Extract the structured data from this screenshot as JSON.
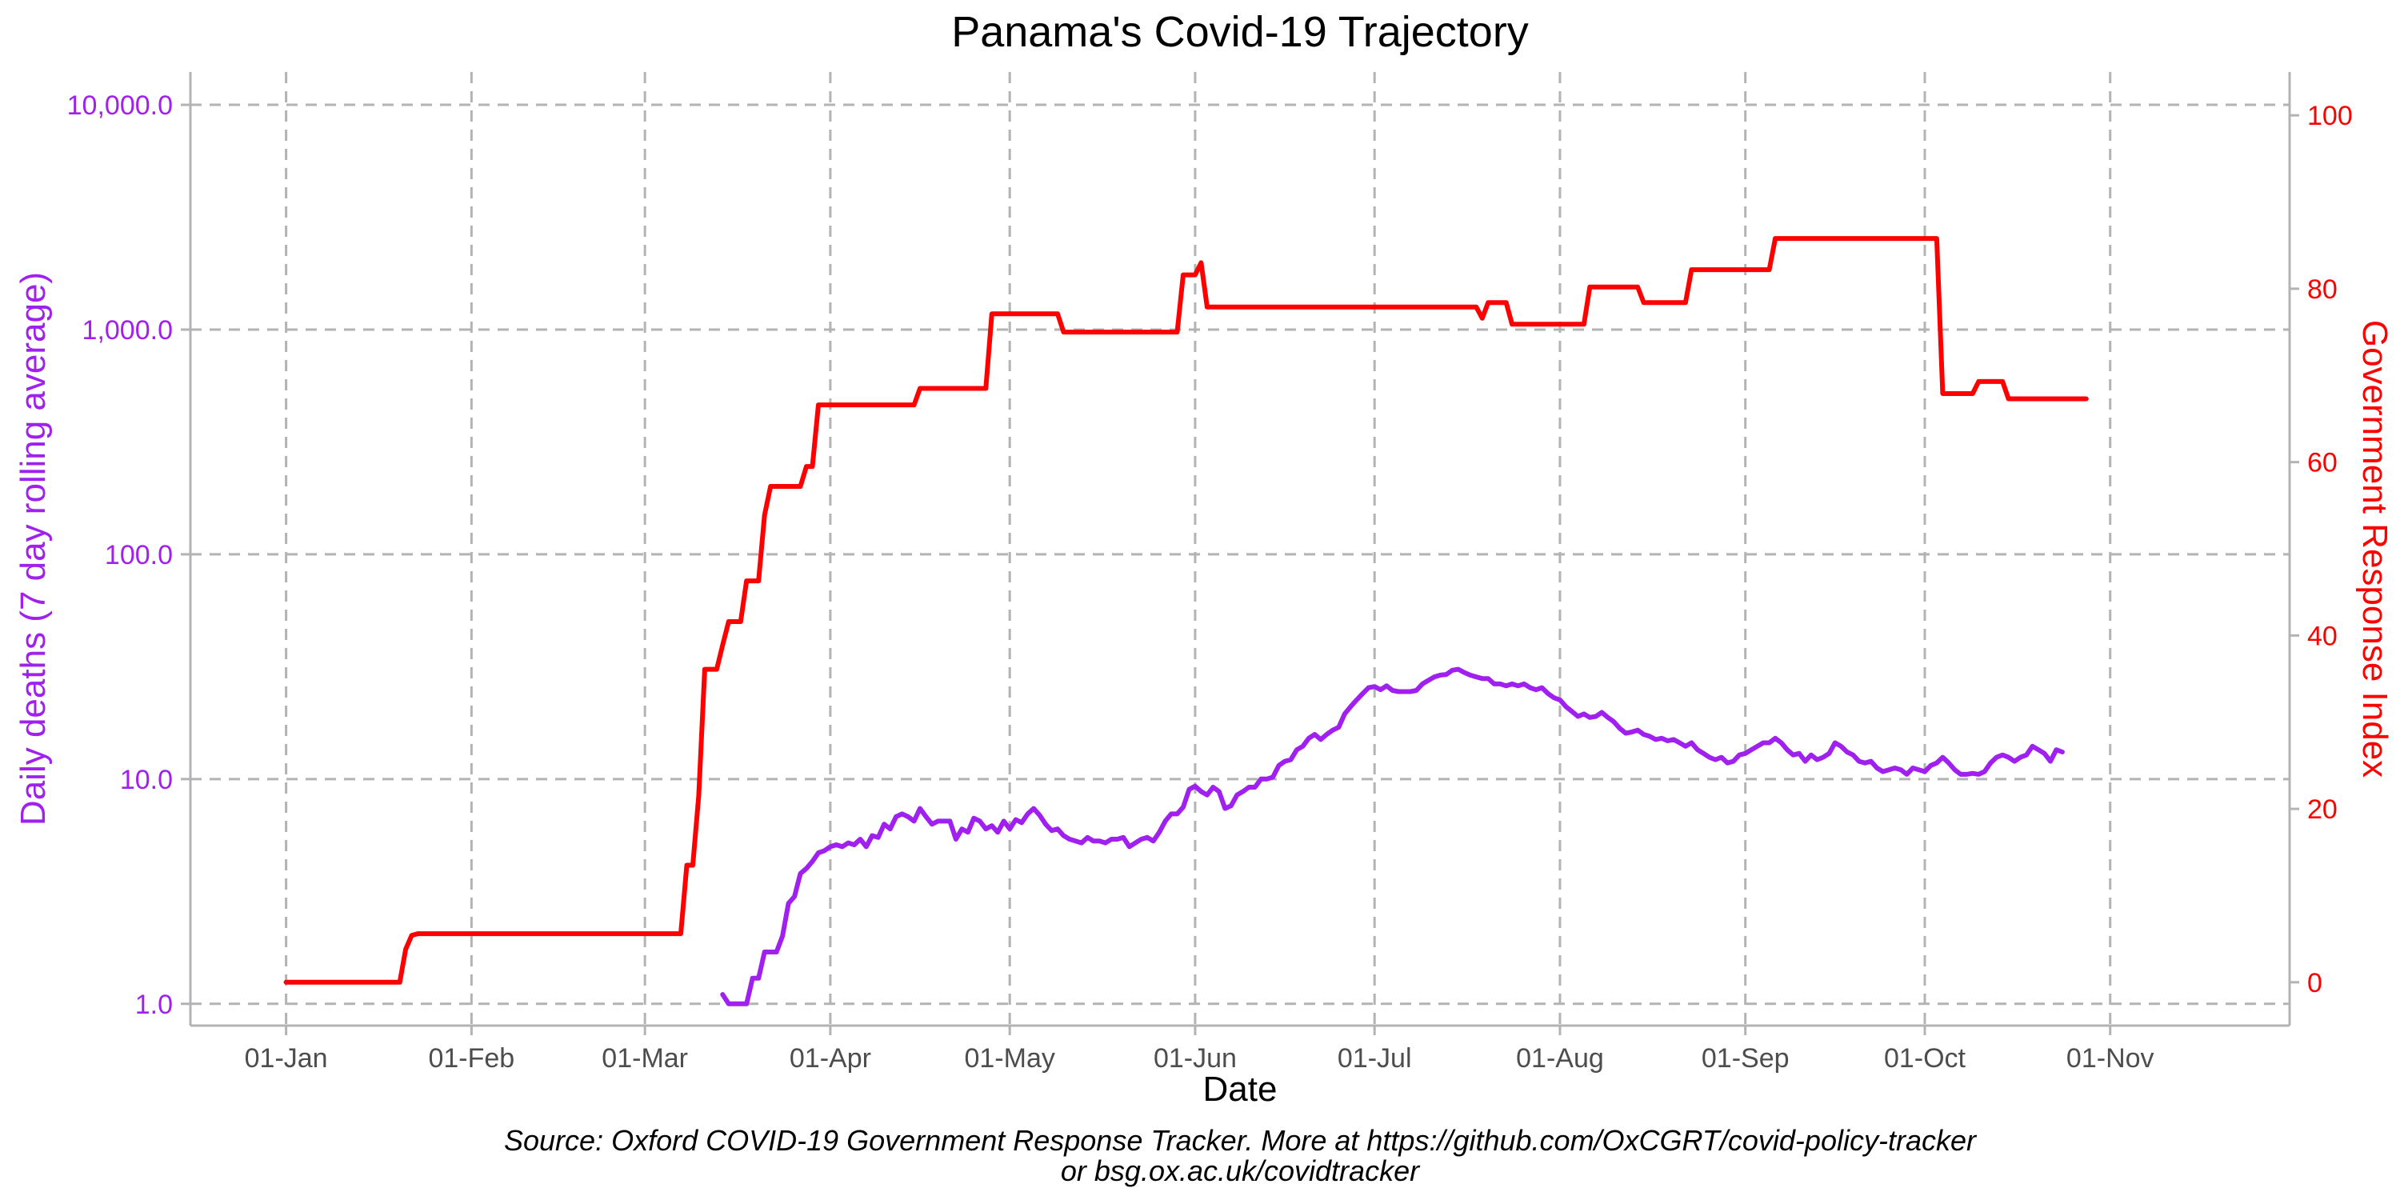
{
  "chart_data": {
    "type": "line",
    "title": "Panama's Covid-19 Trajectory",
    "xlabel": "Date",
    "ylabel_left": "Daily deaths (7 day rolling average)",
    "ylabel_right": "Government Response Index",
    "caption_line1": "Source: Oxford COVID-19 Government Response Tracker. More at https://github.com/OxCGRT/covid-policy-tracker",
    "caption_line2": "or bsg.ox.ac.uk/covidtracker",
    "x_ticks": [
      "01-Jan",
      "01-Feb",
      "01-Mar",
      "01-Apr",
      "01-May",
      "01-Jun",
      "01-Jul",
      "01-Aug",
      "01-Sep",
      "01-Oct",
      "01-Nov"
    ],
    "x_tick_days": [
      1,
      32,
      61,
      92,
      122,
      153,
      183,
      214,
      245,
      275,
      306
    ],
    "x_range_days": [
      -15,
      336
    ],
    "y_left": {
      "scale": "log10",
      "range": [
        0.8,
        14000
      ],
      "ticks": [
        1,
        10,
        100,
        1000,
        10000
      ],
      "tick_labels": [
        "1.0",
        "10.0",
        "100.0",
        "1,000.0",
        "10,000.0"
      ],
      "color": "#a020f0"
    },
    "y_right": {
      "scale": "linear",
      "range": [
        -5,
        105
      ],
      "ticks": [
        0,
        20,
        40,
        60,
        80,
        100
      ],
      "tick_labels": [
        "0",
        "20",
        "40",
        "60",
        "80",
        "100"
      ],
      "color": "#ff0000"
    },
    "grid": true,
    "series": [
      {
        "name": "Daily deaths (7 day rolling average)",
        "axis": "left",
        "color": "#a020f0",
        "points": [
          [
            74,
            1.1
          ],
          [
            75,
            1.0
          ],
          [
            78,
            1.0
          ],
          [
            79,
            1.3
          ],
          [
            80,
            1.3
          ],
          [
            81,
            1.7
          ],
          [
            83,
            1.7
          ],
          [
            84,
            2.0
          ],
          [
            85,
            2.8
          ],
          [
            86,
            3.0
          ],
          [
            87,
            3.8
          ],
          [
            88,
            4.0
          ],
          [
            89,
            4.3
          ],
          [
            90,
            4.7
          ],
          [
            91,
            4.8
          ],
          [
            92,
            5.0
          ],
          [
            93,
            5.1
          ],
          [
            94,
            5.0
          ],
          [
            95,
            5.2
          ],
          [
            96,
            5.1
          ],
          [
            97,
            5.4
          ],
          [
            98,
            5.0
          ],
          [
            99,
            5.6
          ],
          [
            100,
            5.5
          ],
          [
            101,
            6.3
          ],
          [
            102,
            6.0
          ],
          [
            103,
            6.8
          ],
          [
            104,
            7.0
          ],
          [
            105,
            6.8
          ],
          [
            106,
            6.5
          ],
          [
            107,
            7.4
          ],
          [
            108,
            6.8
          ],
          [
            109,
            6.3
          ],
          [
            110,
            6.5
          ],
          [
            112,
            6.5
          ],
          [
            113,
            5.4
          ],
          [
            114,
            6.0
          ],
          [
            115,
            5.8
          ],
          [
            116,
            6.7
          ],
          [
            117,
            6.5
          ],
          [
            118,
            6.0
          ],
          [
            119,
            6.2
          ],
          [
            120,
            5.8
          ],
          [
            121,
            6.5
          ],
          [
            122,
            6.0
          ],
          [
            123,
            6.6
          ],
          [
            124,
            6.4
          ],
          [
            125,
            7.0
          ],
          [
            126,
            7.4
          ],
          [
            127,
            6.9
          ],
          [
            128,
            6.3
          ],
          [
            129,
            5.9
          ],
          [
            130,
            6.0
          ],
          [
            131,
            5.6
          ],
          [
            132,
            5.4
          ],
          [
            133,
            5.3
          ],
          [
            134,
            5.2
          ],
          [
            135,
            5.5
          ],
          [
            136,
            5.3
          ],
          [
            137,
            5.3
          ],
          [
            138,
            5.2
          ],
          [
            139,
            5.4
          ],
          [
            140,
            5.4
          ],
          [
            141,
            5.5
          ],
          [
            142,
            5.0
          ],
          [
            143,
            5.2
          ],
          [
            144,
            5.4
          ],
          [
            145,
            5.5
          ],
          [
            146,
            5.3
          ],
          [
            147,
            5.8
          ],
          [
            148,
            6.5
          ],
          [
            149,
            7.0
          ],
          [
            150,
            7.0
          ],
          [
            151,
            7.5
          ],
          [
            152,
            9.0
          ],
          [
            153,
            9.3
          ],
          [
            154,
            8.8
          ],
          [
            155,
            8.5
          ],
          [
            156,
            9.2
          ],
          [
            157,
            8.8
          ],
          [
            158,
            7.4
          ],
          [
            159,
            7.6
          ],
          [
            160,
            8.5
          ],
          [
            161,
            8.8
          ],
          [
            162,
            9.2
          ],
          [
            163,
            9.2
          ],
          [
            164,
            10.0
          ],
          [
            165,
            10.0
          ],
          [
            166,
            10.2
          ],
          [
            167,
            11.5
          ],
          [
            168,
            12.0
          ],
          [
            169,
            12.2
          ],
          [
            170,
            13.5
          ],
          [
            171,
            14.0
          ],
          [
            172,
            15.2
          ],
          [
            173,
            15.8
          ],
          [
            174,
            15.0
          ],
          [
            175,
            15.8
          ],
          [
            176,
            16.5
          ],
          [
            177,
            17.0
          ],
          [
            178,
            19.5
          ],
          [
            179,
            21.0
          ],
          [
            180,
            22.5
          ],
          [
            181,
            24.0
          ],
          [
            182,
            25.5
          ],
          [
            183,
            25.8
          ],
          [
            184,
            25.0
          ],
          [
            185,
            26.0
          ],
          [
            186,
            24.8
          ],
          [
            187,
            24.5
          ],
          [
            188,
            24.5
          ],
          [
            189,
            24.5
          ],
          [
            190,
            24.8
          ],
          [
            191,
            26.5
          ],
          [
            192,
            27.5
          ],
          [
            193,
            28.5
          ],
          [
            194,
            29.0
          ],
          [
            195,
            29.2
          ],
          [
            196,
            30.5
          ],
          [
            197,
            30.8
          ],
          [
            198,
            29.8
          ],
          [
            199,
            29.0
          ],
          [
            200,
            28.5
          ],
          [
            201,
            28.0
          ],
          [
            202,
            28.0
          ],
          [
            203,
            26.5
          ],
          [
            204,
            26.5
          ],
          [
            205,
            26.0
          ],
          [
            206,
            26.5
          ],
          [
            207,
            26.0
          ],
          [
            208,
            26.5
          ],
          [
            209,
            25.5
          ],
          [
            210,
            25.0
          ],
          [
            211,
            25.5
          ],
          [
            212,
            24.0
          ],
          [
            213,
            23.0
          ],
          [
            214,
            22.5
          ],
          [
            215,
            21.0
          ],
          [
            216,
            20.0
          ],
          [
            217,
            19.0
          ],
          [
            218,
            19.5
          ],
          [
            219,
            18.8
          ],
          [
            220,
            19.0
          ],
          [
            221,
            19.8
          ],
          [
            222,
            18.8
          ],
          [
            223,
            18.0
          ],
          [
            224,
            16.8
          ],
          [
            225,
            16.0
          ],
          [
            226,
            16.2
          ],
          [
            227,
            16.5
          ],
          [
            228,
            15.8
          ],
          [
            229,
            15.5
          ],
          [
            230,
            15.0
          ],
          [
            231,
            15.2
          ],
          [
            232,
            14.8
          ],
          [
            233,
            15.0
          ],
          [
            234,
            14.5
          ],
          [
            235,
            14.0
          ],
          [
            236,
            14.5
          ],
          [
            237,
            13.5
          ],
          [
            238,
            13.0
          ],
          [
            239,
            12.5
          ],
          [
            240,
            12.2
          ],
          [
            241,
            12.5
          ],
          [
            242,
            11.8
          ],
          [
            243,
            12.0
          ],
          [
            244,
            12.8
          ],
          [
            245,
            13.0
          ],
          [
            246,
            13.5
          ],
          [
            247,
            14.0
          ],
          [
            248,
            14.5
          ],
          [
            249,
            14.5
          ],
          [
            250,
            15.2
          ],
          [
            251,
            14.5
          ],
          [
            252,
            13.5
          ],
          [
            253,
            12.8
          ],
          [
            254,
            13.0
          ],
          [
            255,
            12.0
          ],
          [
            256,
            12.8
          ],
          [
            257,
            12.2
          ],
          [
            258,
            12.5
          ],
          [
            259,
            13.0
          ],
          [
            260,
            14.5
          ],
          [
            261,
            14.0
          ],
          [
            262,
            13.2
          ],
          [
            263,
            12.8
          ],
          [
            264,
            12.0
          ],
          [
            265,
            11.8
          ],
          [
            266,
            12.0
          ],
          [
            267,
            11.2
          ],
          [
            268,
            10.8
          ],
          [
            269,
            11.0
          ],
          [
            270,
            11.2
          ],
          [
            271,
            11.0
          ],
          [
            272,
            10.5
          ],
          [
            273,
            11.2
          ],
          [
            274,
            11.0
          ],
          [
            275,
            10.8
          ],
          [
            276,
            11.5
          ],
          [
            277,
            11.8
          ],
          [
            278,
            12.5
          ],
          [
            279,
            11.8
          ],
          [
            280,
            11.0
          ],
          [
            281,
            10.5
          ],
          [
            282,
            10.5
          ],
          [
            283,
            10.6
          ],
          [
            284,
            10.5
          ],
          [
            285,
            10.8
          ],
          [
            286,
            11.8
          ],
          [
            287,
            12.5
          ],
          [
            288,
            12.8
          ],
          [
            289,
            12.5
          ],
          [
            290,
            12.0
          ],
          [
            291,
            12.5
          ],
          [
            292,
            12.8
          ],
          [
            293,
            14.0
          ],
          [
            294,
            13.5
          ],
          [
            295,
            13.0
          ],
          [
            296,
            12.0
          ],
          [
            297,
            13.5
          ],
          [
            298,
            13.2
          ]
        ]
      },
      {
        "name": "Government Response Index",
        "axis": "right",
        "color": "#ff0000",
        "points": [
          [
            1,
            0
          ],
          [
            20,
            0
          ],
          [
            21,
            3.8
          ],
          [
            22,
            5.4
          ],
          [
            23,
            5.6
          ],
          [
            67,
            5.6
          ],
          [
            68,
            13.5
          ],
          [
            69,
            13.5
          ],
          [
            70,
            21.5
          ],
          [
            71,
            36.1
          ],
          [
            72,
            36.1
          ],
          [
            73,
            36.1
          ],
          [
            74,
            38.9
          ],
          [
            75,
            41.6
          ],
          [
            76,
            41.6
          ],
          [
            77,
            41.6
          ],
          [
            78,
            46.3
          ],
          [
            79,
            46.3
          ],
          [
            80,
            46.3
          ],
          [
            81,
            53.9
          ],
          [
            82,
            57.2
          ],
          [
            83,
            57.2
          ],
          [
            87,
            57.2
          ],
          [
            88,
            59.5
          ],
          [
            89,
            59.5
          ],
          [
            90,
            66.6
          ],
          [
            91,
            66.6
          ],
          [
            106,
            66.6
          ],
          [
            107,
            68.5
          ],
          [
            118,
            68.5
          ],
          [
            119,
            77.1
          ],
          [
            130,
            77.1
          ],
          [
            131,
            75.0
          ],
          [
            150,
            75.0
          ],
          [
            151,
            81.6
          ],
          [
            153,
            81.6
          ],
          [
            154,
            83.0
          ],
          [
            155,
            77.9
          ],
          [
            200,
            77.9
          ],
          [
            201,
            76.6
          ],
          [
            202,
            78.4
          ],
          [
            205,
            78.4
          ],
          [
            206,
            75.9
          ],
          [
            218,
            75.9
          ],
          [
            219,
            80.2
          ],
          [
            227,
            80.2
          ],
          [
            228,
            78.4
          ],
          [
            235,
            78.4
          ],
          [
            236,
            82.2
          ],
          [
            249,
            82.2
          ],
          [
            250,
            85.8
          ],
          [
            277,
            85.8
          ],
          [
            278,
            67.9
          ],
          [
            283,
            67.9
          ],
          [
            284,
            69.3
          ],
          [
            288,
            69.3
          ],
          [
            289,
            67.3
          ],
          [
            302,
            67.3
          ]
        ]
      }
    ]
  }
}
